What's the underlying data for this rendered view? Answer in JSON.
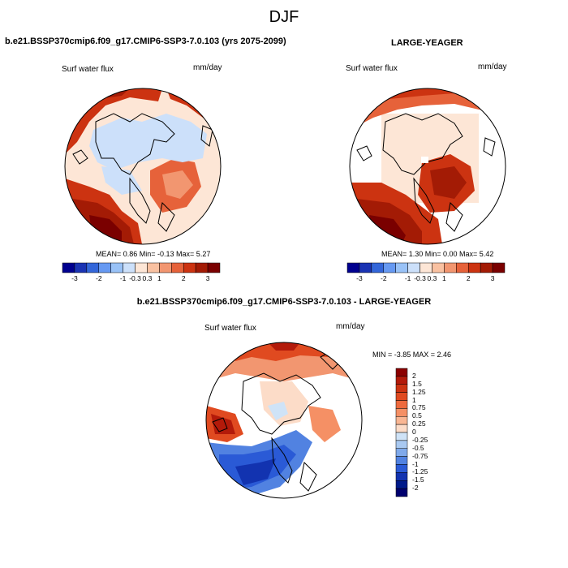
{
  "page_title": "DJF",
  "panels": [
    {
      "case_title": "b.e21.BSSP370cmip6.f09_g17.CMIP6-SSP3-7.0.103 (yrs 2075-2099)",
      "variable": "Surf water flux",
      "units": "mm/day",
      "stats": "MEAN=   0.86  Min=  -0.13  Max=   5.27"
    },
    {
      "case_title": "LARGE-YEAGER",
      "variable": "Surf water flux",
      "units": "mm/day",
      "stats": "MEAN=   1.30  Min=   0.00  Max=   5.42"
    },
    {
      "case_title": "b.e21.BSSP370cmip6.f09_g17.CMIP6-SSP3-7.0.103 - LARGE-YEAGER",
      "variable": "Surf water flux",
      "units": "mm/day",
      "stats": "MIN =  -3.85 MAX =    2.46"
    }
  ],
  "colorbar_horizontal": {
    "tick_labels": [
      "-3",
      "-2",
      "-1",
      "-0.3",
      "0.3",
      "1",
      "2",
      "3"
    ],
    "colors": [
      "#00008f",
      "#1a33b3",
      "#3366d9",
      "#6699f2",
      "#99c2f7",
      "#cce0fa",
      "#fde6d6",
      "#f9c1a1",
      "#f29670",
      "#e6623a",
      "#cc3311",
      "#a31b05",
      "#7a0000"
    ]
  },
  "colorbar_vertical": {
    "tick_labels": [
      "2",
      "1.5",
      "1.25",
      "1",
      "0.75",
      "0.5",
      "0.25",
      "0",
      "-0.25",
      "-0.5",
      "-0.75",
      "-1",
      "-1.25",
      "-1.5",
      "-2"
    ],
    "colors": [
      "#8b0000",
      "#b31a0a",
      "#cc3311",
      "#e04a20",
      "#ee6a3e",
      "#f59065",
      "#f9b693",
      "#fcdcc8",
      "#cfe3f7",
      "#a9c9f1",
      "#7fa9ea",
      "#5182e1",
      "#2a5ad6",
      "#1233b0",
      "#001a8a",
      "#00006e"
    ]
  }
}
